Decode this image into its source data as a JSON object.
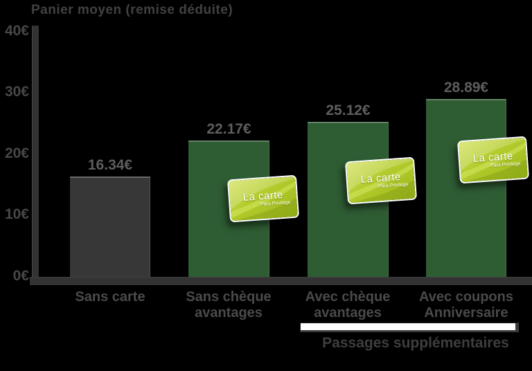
{
  "title": "Panier moyen (remise déduite)",
  "chart_data": {
    "type": "bar",
    "title": "Panier moyen (remise déduite)",
    "categories": [
      "Sans carte",
      "Sans chèque avantages",
      "Avec chèque avantages",
      "Avec coupons Anniversaire"
    ],
    "categories_lines": [
      [
        "Sans carte",
        ""
      ],
      [
        "Sans chèque",
        "avantages"
      ],
      [
        "Avec chèque",
        "avantages"
      ],
      [
        "Avec coupons",
        "Anniversaire"
      ]
    ],
    "values": [
      16.34,
      22.17,
      25.12,
      28.89
    ],
    "value_labels": [
      "16.34€",
      "22.17€",
      "25.12€",
      "28.89€"
    ],
    "ytick_labels": [
      "40€",
      "30€",
      "20€",
      "10€",
      "0€"
    ],
    "ylim": [
      0,
      40
    ],
    "grid": false,
    "legend": false,
    "bar_colors": [
      "#373737",
      "#2e5c33",
      "#2e5c33",
      "#2e5c33"
    ],
    "annotation": "Passages supplémentaires",
    "annotation_span": [
      "Avec chèque avantages",
      "Avec coupons Anniversaire"
    ]
  },
  "card": {
    "title": "La carte",
    "subtitle": "Para Privilège"
  },
  "colors": {
    "background": "#000000",
    "axis": "#333333",
    "bar_gray": "#373737",
    "bar_green": "#2e5c33",
    "text_gray": "#4a4a4a",
    "value_text": "#5e5e5e",
    "platform_white": "#fdfdfd",
    "card_light": "#cede52",
    "card_mid": "#b3cb2c",
    "card_dark": "#9cb81c"
  }
}
